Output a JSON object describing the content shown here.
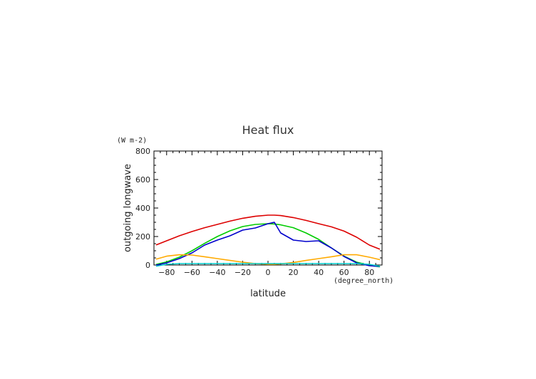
{
  "chart_data": {
    "type": "line",
    "title": "Heat flux",
    "xlabel": "latitude",
    "xunit": "(degree_north)",
    "ylabel": "outgoing longwave",
    "yunit": "(W m-2)",
    "xlim": [
      -90,
      90
    ],
    "ylim": [
      0,
      800
    ],
    "xticks": [
      -80,
      -60,
      -40,
      -20,
      0,
      20,
      40,
      60,
      80
    ],
    "yticks": [
      0,
      200,
      400,
      600,
      800
    ],
    "x": [
      -88,
      -80,
      -70,
      -60,
      -50,
      -40,
      -30,
      -20,
      -10,
      0,
      5,
      10,
      20,
      30,
      40,
      50,
      60,
      70,
      80,
      88
    ],
    "series": [
      {
        "color": "#dd0000",
        "values": [
          142,
          170,
          205,
          235,
          262,
          285,
          308,
          328,
          342,
          350,
          350,
          347,
          333,
          313,
          290,
          268,
          238,
          195,
          140,
          112
        ]
      },
      {
        "color": "#00cc00",
        "values": [
          5,
          22,
          55,
          100,
          152,
          200,
          240,
          270,
          285,
          290,
          288,
          282,
          262,
          225,
          180,
          120,
          62,
          20,
          -2,
          -12
        ]
      },
      {
        "color": "#0000cc",
        "values": [
          0,
          15,
          45,
          85,
          140,
          175,
          205,
          245,
          260,
          290,
          300,
          225,
          175,
          165,
          170,
          120,
          60,
          15,
          -5,
          -10
        ]
      },
      {
        "color": "#ffaa00",
        "values": [
          42,
          62,
          72,
          70,
          58,
          45,
          32,
          20,
          10,
          5,
          5,
          8,
          18,
          32,
          45,
          58,
          72,
          72,
          55,
          38
        ]
      },
      {
        "color": "#00cccc",
        "values": [
          -8,
          5,
          10,
          10,
          10,
          10,
          10,
          10,
          10,
          10,
          10,
          10,
          10,
          10,
          10,
          10,
          10,
          10,
          5,
          -8
        ]
      }
    ]
  }
}
